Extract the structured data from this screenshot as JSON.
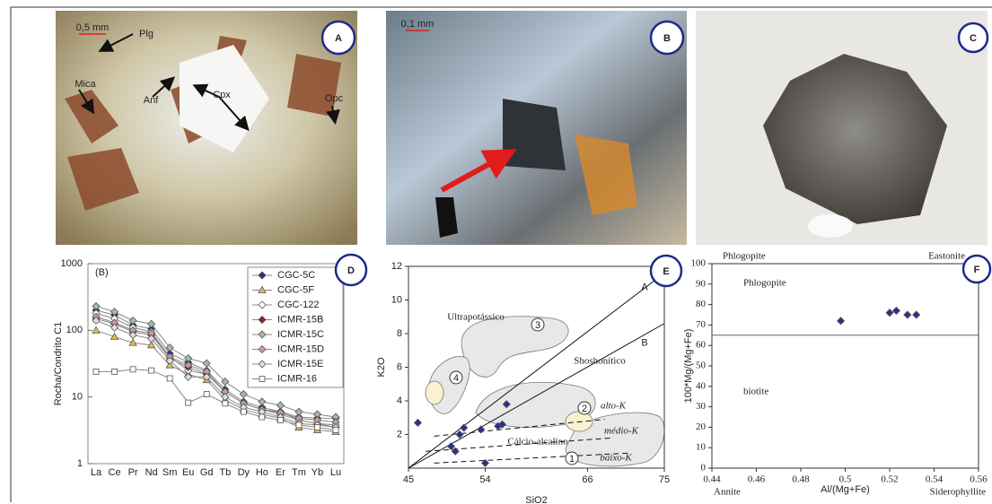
{
  "photos": [
    {
      "label": "A",
      "scale": "0,5 mm",
      "annotations": [
        "Plg",
        "Mica",
        "Anf",
        "Cpx",
        "Opc"
      ]
    },
    {
      "label": "B",
      "scale": "0,1 mm"
    },
    {
      "label": "C"
    }
  ],
  "chart_data": [
    {
      "type": "line",
      "label": "D",
      "subtitle": "(B)",
      "y_label": "Rocha/Condrito C1",
      "log_scale": true,
      "categories": [
        "La",
        "Ce",
        "Pr",
        "Nd",
        "Sm",
        "Eu",
        "Gd",
        "Tb",
        "Dy",
        "Ho",
        "Er",
        "Tm",
        "Yb",
        "Lu"
      ],
      "ylim": [
        1,
        1000
      ],
      "yticks": [
        1,
        10,
        100,
        1000
      ],
      "series": [
        {
          "name": "CGC-5C",
          "color": "#2b2f8f",
          "marker": "diamond",
          "values": [
            200,
            170,
            120,
            105,
            45,
            33,
            25,
            13,
            8.5,
            7,
            6,
            4.5,
            4,
            3.5
          ]
        },
        {
          "name": "CGC-5F",
          "color": "#e2c04a",
          "marker": "triangle",
          "values": [
            100,
            80,
            65,
            60,
            30,
            22,
            18,
            9,
            6.5,
            5.5,
            4.8,
            3.5,
            3.2,
            3
          ]
        },
        {
          "name": "CGC-122",
          "color": "#ffffff",
          "marker": "diamond",
          "values": [
            180,
            150,
            110,
            95,
            40,
            25,
            22,
            12,
            8,
            6.5,
            5.5,
            4.5,
            4,
            3.8
          ]
        },
        {
          "name": "ICMR-15B",
          "color": "#9b1c1c",
          "marker": "diamond",
          "values": [
            150,
            125,
            95,
            85,
            38,
            28,
            22,
            12,
            8,
            6.5,
            6,
            5,
            4.8,
            4.8
          ]
        },
        {
          "name": "ICMR-15C",
          "color": "#a9b8a0",
          "marker": "diamond",
          "values": [
            230,
            190,
            140,
            125,
            55,
            38,
            32,
            17,
            11,
            8.5,
            7.5,
            6,
            5.5,
            5
          ]
        },
        {
          "name": "ICMR-15D",
          "color": "#c99aa8",
          "marker": "diamond",
          "values": [
            160,
            130,
            100,
            90,
            40,
            30,
            24,
            12,
            8,
            6.5,
            5.8,
            4.8,
            4.5,
            4.2
          ]
        },
        {
          "name": "ICMR-15E",
          "color": "#dddddd",
          "marker": "diamond",
          "values": [
            140,
            110,
            85,
            75,
            35,
            20,
            20,
            10,
            7,
            6,
            5,
            4,
            3.8,
            3.5
          ]
        },
        {
          "name": "ICMR-16",
          "color": "#ffffff",
          "marker": "square",
          "values": [
            24,
            24,
            26,
            25,
            19,
            8.2,
            11,
            8,
            6,
            5,
            4.5,
            3.8,
            3.5,
            3.2
          ]
        }
      ]
    },
    {
      "type": "scatter",
      "label": "E",
      "x_label": "SiO2",
      "y_label": "K2O",
      "color": "#2b2f8f",
      "xlim": [
        45,
        75
      ],
      "xticks": [
        45,
        54,
        66,
        75
      ],
      "ylim": [
        0,
        12
      ],
      "yticks": [
        2,
        4,
        6,
        8,
        10,
        12
      ],
      "x": [
        46.1,
        50,
        50.5,
        51,
        51.5,
        53.5,
        55.5,
        56,
        56.5,
        54
      ],
      "y": [
        2.7,
        1.3,
        1.0,
        2.0,
        2.4,
        2.3,
        2.5,
        2.6,
        3.8,
        0.3
      ],
      "series_lines": [
        "A",
        "B"
      ],
      "field_names": [
        "Ultrapotássico",
        "Shoshonítico",
        "Cálcio-alcalino",
        "alto-K",
        "médio-K",
        "baixo-K"
      ],
      "field_numbers": [
        "1",
        "2",
        "3",
        "4"
      ]
    },
    {
      "type": "scatter",
      "label": "F",
      "x_label": "Al/(Mg+Fe)",
      "y_label": "100*Mg/(Mg+Fe)",
      "color": "#2b2f8f",
      "xlim": [
        0.44,
        0.56
      ],
      "xticks": [
        0.44,
        0.46,
        0.48,
        0.5,
        0.52,
        0.54,
        0.56
      ],
      "ylim": [
        0,
        100
      ],
      "yticks": [
        0,
        10,
        20,
        30,
        40,
        50,
        60,
        70,
        80,
        90,
        100
      ],
      "x": [
        0.498,
        0.52,
        0.523,
        0.528,
        0.532
      ],
      "y": [
        72,
        76,
        77,
        75,
        75
      ],
      "divider": 65,
      "corner_names": [
        "Phlogopite",
        "Eastonite",
        "Annite",
        "Siderophyllite"
      ],
      "field_names": [
        "Phlogopite",
        "biotite"
      ]
    }
  ]
}
